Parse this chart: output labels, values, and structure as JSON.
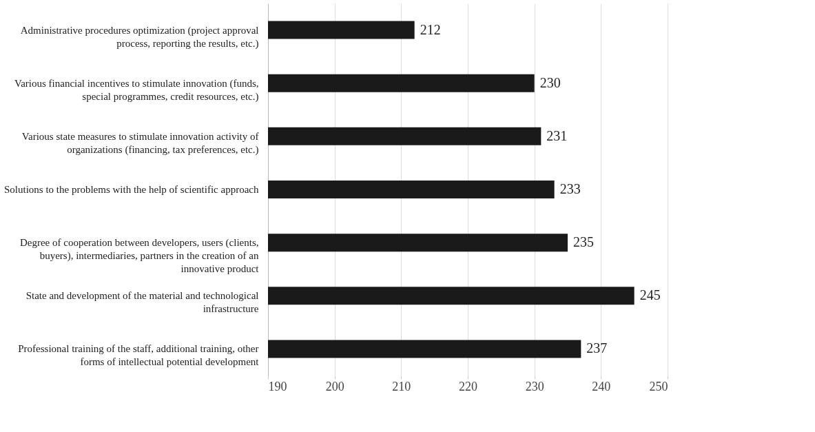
{
  "chart_data": {
    "type": "bar",
    "orientation": "horizontal",
    "categories": [
      "Administrative procedures optimization (project approval process, reporting the results, etc.)",
      "Various financial incentives to stimulate innovation (funds, special programmes, credit resources, etc.)",
      "Various state measures to stimulate innovation activity of organizations (financing, tax preferences, etc.)",
      "Solutions to the problems with the help of scientific approach",
      "Degree of cooperation between developers, users (clients, buyers), intermediaries, partners in the creation of an innovative product",
      "State and development of the material and technological infrastructure",
      "Professional training of the staff, additional training, other forms of intellectual potential development"
    ],
    "values": [
      212,
      230,
      231,
      233,
      235,
      245,
      237
    ],
    "color": "#1a1a1a",
    "xlim": [
      190,
      250
    ],
    "xticks": [
      190,
      200,
      210,
      220,
      230,
      240,
      250
    ],
    "grid": "x",
    "data_labels": true
  }
}
